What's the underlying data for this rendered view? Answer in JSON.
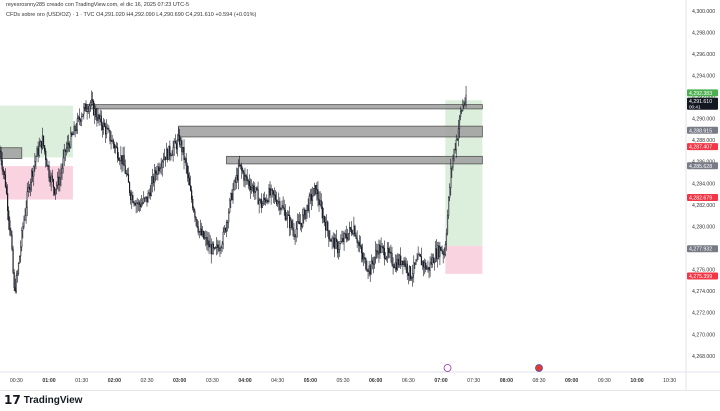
{
  "header": {
    "credit": "reyesrosnny285 creado con TradingView.com, el dic 16, 2025 07:23 UTC-5",
    "symbol": "CFDs sobre oro (USD/OZ) · 1 · TVC",
    "ohlc": "O4,291.020 H4,292.090 L4,290.690 C4,291.610 +0.594 (+0.01%)"
  },
  "footer": {
    "brand": "TradingView"
  },
  "colors": {
    "candle": "#131722",
    "zone_gray": "#9e9e9e",
    "zone_green": "#c8e6c9",
    "zone_red": "#f8bbd0",
    "label_green": "#4caf50",
    "label_red": "#f23645",
    "label_gray": "#787b86",
    "label_dark": "#131722"
  },
  "icons": [
    "tradingview-logo-icon",
    "event-flag-icon",
    "us-flag-icon"
  ],
  "chart_data": {
    "type": "candlestick",
    "xlim": [
      "00:15",
      "10:45"
    ],
    "ylim": [
      4266.5,
      4301.0
    ],
    "x_ticks": [
      "00:30",
      "01:00",
      "01:30",
      "02:00",
      "02:30",
      "03:00",
      "03:30",
      "04:00",
      "04:30",
      "05:00",
      "05:30",
      "06:00",
      "06:30",
      "07:00",
      "07:30",
      "08:00",
      "08:30",
      "09:00",
      "09:30",
      "10:00",
      "10:30"
    ],
    "y_ticks": [
      "4,300.000",
      "4,298.000",
      "4,296.000",
      "4,294.000",
      "4,292.000",
      "4,290.000",
      "4,288.000",
      "4,286.000",
      "4,284.000",
      "4,282.000",
      "4,280.000",
      "4,278.000",
      "4,276.000",
      "4,274.000",
      "4,272.000",
      "4,270.000",
      "4,268.000"
    ],
    "path": [
      [
        "00:15",
        4287.0
      ],
      [
        "00:20",
        4284.0
      ],
      [
        "00:25",
        4279.0
      ],
      [
        "00:28",
        4274.0
      ],
      [
        "00:31",
        4275.5
      ],
      [
        "00:36",
        4280.0
      ],
      [
        "00:42",
        4284.0
      ],
      [
        "00:48",
        4286.5
      ],
      [
        "00:54",
        4288.0
      ],
      [
        "01:00",
        4285.0
      ],
      [
        "01:05",
        4283.5
      ],
      [
        "01:10",
        4284.5
      ],
      [
        "01:15",
        4287.0
      ],
      [
        "01:22",
        4288.5
      ],
      [
        "01:30",
        4290.5
      ],
      [
        "01:38",
        4291.5
      ],
      [
        "01:45",
        4290.0
      ],
      [
        "01:52",
        4289.0
      ],
      [
        "02:00",
        4287.5
      ],
      [
        "02:08",
        4286.0
      ],
      [
        "02:15",
        4283.0
      ],
      [
        "02:22",
        4282.0
      ],
      [
        "02:30",
        4282.5
      ],
      [
        "02:38",
        4285.0
      ],
      [
        "02:45",
        4286.5
      ],
      [
        "02:52",
        4287.0
      ],
      [
        "03:00",
        4288.0
      ],
      [
        "03:05",
        4286.0
      ],
      [
        "03:10",
        4283.0
      ],
      [
        "03:18",
        4279.5
      ],
      [
        "03:25",
        4278.5
      ],
      [
        "03:32",
        4277.5
      ],
      [
        "03:40",
        4279.0
      ],
      [
        "03:48",
        4283.0
      ],
      [
        "03:55",
        4285.5
      ],
      [
        "04:00",
        4284.5
      ],
      [
        "04:08",
        4283.5
      ],
      [
        "04:15",
        4282.0
      ],
      [
        "04:22",
        4283.0
      ],
      [
        "04:30",
        4282.5
      ],
      [
        "04:38",
        4281.0
      ],
      [
        "04:45",
        4279.5
      ],
      [
        "04:52",
        4280.5
      ],
      [
        "05:00",
        4282.5
      ],
      [
        "05:05",
        4283.5
      ],
      [
        "05:10",
        4281.5
      ],
      [
        "05:18",
        4279.0
      ],
      [
        "05:25",
        4278.0
      ],
      [
        "05:32",
        4279.0
      ],
      [
        "05:40",
        4280.0
      ],
      [
        "05:48",
        4277.0
      ],
      [
        "05:55",
        4276.0
      ],
      [
        "06:02",
        4278.0
      ],
      [
        "06:10",
        4277.5
      ],
      [
        "06:18",
        4276.5
      ],
      [
        "06:25",
        4277.0
      ],
      [
        "06:32",
        4275.5
      ],
      [
        "06:40",
        4277.0
      ],
      [
        "06:48",
        4276.0
      ],
      [
        "06:55",
        4277.5
      ],
      [
        "07:00",
        4278.0
      ],
      [
        "07:03",
        4277.5
      ],
      [
        "07:06",
        4281.0
      ],
      [
        "07:09",
        4285.0
      ],
      [
        "07:12",
        4287.0
      ],
      [
        "07:15",
        4288.5
      ],
      [
        "07:18",
        4290.5
      ],
      [
        "07:21",
        4291.6
      ],
      [
        "07:23",
        4291.6
      ]
    ]
  },
  "zones": {
    "supply_1": {
      "top": 4291.3,
      "bottom": 4290.9,
      "from": "01:33",
      "to": "07:38"
    },
    "supply_2": {
      "top": 4289.3,
      "bottom": 4288.3,
      "from": "02:59",
      "to": "07:38"
    },
    "supply_3": {
      "top": 4286.5,
      "bottom": 4285.8,
      "from": "03:43",
      "to": "07:38"
    },
    "supply_left": {
      "top": 4287.3,
      "bottom": 4286.3,
      "from": "00:15",
      "to": "00:35"
    },
    "pos_left_profit": {
      "top": 4291.2,
      "bottom": 4286.4,
      "from": "00:15",
      "to": "01:22"
    },
    "pos_left_loss": {
      "top": 4285.6,
      "bottom": 4282.5,
      "from": "00:15",
      "to": "01:22"
    },
    "pos_right_profit": {
      "top": 4291.7,
      "bottom": 4278.2,
      "from": "07:04",
      "to": "07:38"
    },
    "pos_right_loss": {
      "top": 4278.2,
      "bottom": 4275.6,
      "from": "07:04",
      "to": "07:38"
    }
  },
  "price_labels": [
    {
      "text": "4,292.383",
      "price": 4292.383,
      "color": "#4caf50"
    },
    {
      "text": "4,291.617",
      "price": 4291.617,
      "color": "#4caf50"
    },
    {
      "text": "4,291.610",
      "price": 4291.61,
      "color": "#131722",
      "sub": "00:41"
    },
    {
      "text": "4,288.915",
      "price": 4288.915,
      "color": "#787b86"
    },
    {
      "text": "4,287.407",
      "price": 4287.407,
      "color": "#f23645"
    },
    {
      "text": "4,285.628",
      "price": 4285.628,
      "color": "#787b86"
    },
    {
      "text": "4,282.679",
      "price": 4282.679,
      "color": "#f23645"
    },
    {
      "text": "4,277.932",
      "price": 4277.932,
      "color": "#787b86"
    },
    {
      "text": "4,275.399",
      "price": 4275.399,
      "color": "#f23645"
    }
  ]
}
